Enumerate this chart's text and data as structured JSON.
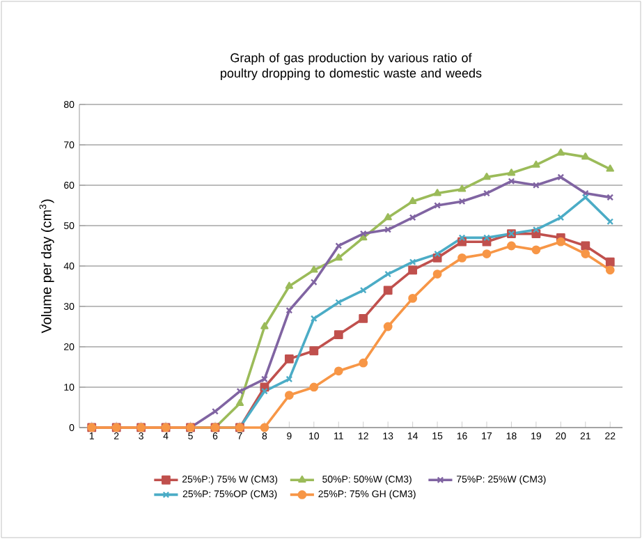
{
  "chart_data": {
    "type": "line",
    "title": "Graph of gas production by various ratio of poultry dropping to domestic waste and weeds",
    "ylabel": "Volume per day (cm$^{3}$)",
    "categories": [
      "1",
      "2",
      "3",
      "4",
      "5",
      "6",
      "7",
      "8",
      "9",
      "10",
      "11",
      "12",
      "13",
      "14",
      "15",
      "16",
      "17",
      "18",
      "19",
      "20",
      "21",
      "22"
    ],
    "ylim": [
      0,
      80
    ],
    "yticks": [
      0,
      10,
      20,
      30,
      40,
      50,
      60,
      70,
      80
    ],
    "grid": "y",
    "legend": "bottom",
    "line_style": "solid",
    "series": [
      {
        "name": "25%P:) 75% W (CM3)",
        "color": "#c0504d",
        "marker": "square",
        "values": [
          0,
          0,
          0,
          0,
          0,
          0,
          0,
          10,
          17,
          19,
          23,
          27,
          34,
          39,
          42,
          46,
          46,
          48,
          48,
          47,
          45,
          41
        ]
      },
      {
        "name": "50%P: 50%W (CM3)",
        "color": "#9bbb59",
        "marker": "triangle",
        "values": [
          null,
          null,
          null,
          null,
          0,
          0,
          6,
          25,
          35,
          39,
          42,
          47,
          52,
          56,
          58,
          59,
          62,
          63,
          65,
          68,
          67,
          64
        ]
      },
      {
        "name": "75%P: 25%W (CM3)",
        "color": "#8064a2",
        "marker": "cross",
        "values": [
          null,
          null,
          null,
          null,
          0,
          4,
          9,
          12,
          29,
          36,
          45,
          48,
          49,
          52,
          55,
          56,
          58,
          61,
          60,
          62,
          58,
          57
        ]
      },
      {
        "name": "25%P: 75%OP (CM3)",
        "color": "#4bacc6",
        "marker": "cross",
        "values": [
          null,
          null,
          null,
          null,
          0,
          0,
          0,
          9,
          12,
          27,
          31,
          34,
          38,
          41,
          43,
          47,
          47,
          48,
          49,
          52,
          57,
          51
        ]
      },
      {
        "name": "25%P: 75% GH (CM3)",
        "color": "#f79646",
        "marker": "circle",
        "values": [
          0,
          0,
          0,
          0,
          0,
          0,
          0,
          0,
          8,
          10,
          14,
          16,
          25,
          32,
          38,
          42,
          43,
          45,
          44,
          46,
          43,
          39
        ]
      }
    ]
  }
}
